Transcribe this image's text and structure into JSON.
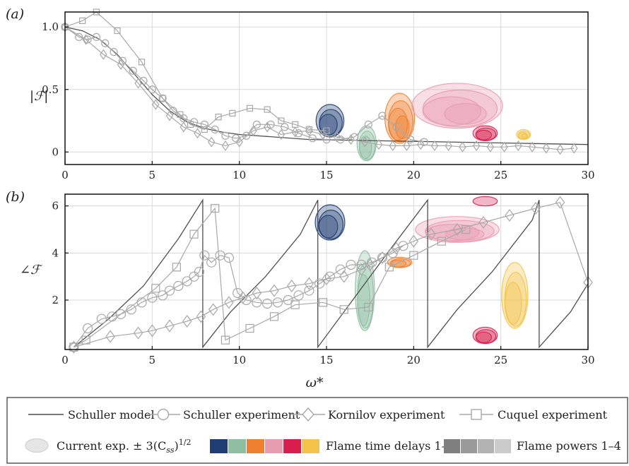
{
  "colors": {
    "delays": [
      "#1f3f73",
      "#8fbfa3",
      "#ee8030",
      "#e99bb0",
      "#d81e4d",
      "#f3c34a"
    ],
    "powers": [
      "#7f7f7f",
      "#9a9a9a",
      "#b3b3b3",
      "#cbcbcb"
    ],
    "marker": "#a8a8a8",
    "model": "#4f4f4f"
  },
  "chart_data": [
    {
      "panel": "(a)",
      "type": "line",
      "xlim": [
        0,
        30
      ],
      "ylim": [
        -0.1,
        1.12
      ],
      "grid": true,
      "ylabel": "|ℱ|",
      "xticks": [
        0,
        5,
        10,
        15,
        20,
        25,
        30
      ],
      "yticks": [
        0,
        0.5,
        1.0
      ],
      "ytick_labels": [
        "0",
        "0.5",
        "1.0"
      ],
      "series": [
        {
          "name": "Schuller model",
          "style": "line",
          "x": [
            0,
            1,
            2,
            3,
            4,
            5,
            6,
            7,
            8,
            9,
            10,
            12,
            14,
            16,
            18,
            20,
            22,
            24,
            26,
            28,
            30
          ],
          "y": [
            1.0,
            0.97,
            0.9,
            0.78,
            0.62,
            0.46,
            0.33,
            0.24,
            0.19,
            0.16,
            0.14,
            0.12,
            0.1,
            0.095,
            0.09,
            0.085,
            0.08,
            0.075,
            0.07,
            0.065,
            0.06
          ]
        },
        {
          "name": "Schuller experiment",
          "style": "circle",
          "x": [
            0,
            0.8,
            1.3,
            1.8,
            2.3,
            2.8,
            3.3,
            3.9,
            4.5,
            5.0,
            5.6,
            6.2,
            6.8,
            7.4,
            8.0,
            8.6,
            9.2,
            9.8,
            10.4,
            11.0,
            11.8,
            12.6,
            13.4,
            14.2,
            15.0,
            15.8,
            16.6,
            17.4,
            18.2,
            19.0,
            19.8,
            20.6
          ],
          "y": [
            1.0,
            0.92,
            0.9,
            0.92,
            0.87,
            0.8,
            0.73,
            0.65,
            0.57,
            0.5,
            0.43,
            0.33,
            0.27,
            0.24,
            0.22,
            0.18,
            0.13,
            0.11,
            0.13,
            0.22,
            0.22,
            0.2,
            0.15,
            0.11,
            0.1,
            0.1,
            0.12,
            0.22,
            0.29,
            0.2,
            0.1,
            0.08
          ]
        },
        {
          "name": "Kornilov experiment",
          "style": "diamond",
          "x": [
            0,
            1.2,
            2.2,
            3.2,
            4.2,
            5.2,
            6.0,
            6.8,
            7.6,
            8.4,
            9.2,
            10.0,
            10.8,
            11.6,
            12.4,
            13.2,
            14.0,
            14.8,
            15.6,
            16.4,
            17.2,
            18.0,
            18.8,
            19.6,
            20.4,
            21.2,
            22.0,
            22.8,
            23.6,
            24.4,
            25.2,
            26.0,
            26.8,
            27.6,
            28.4,
            29.2
          ],
          "y": [
            1.0,
            0.9,
            0.78,
            0.7,
            0.55,
            0.38,
            0.29,
            0.2,
            0.15,
            0.08,
            0.05,
            0.08,
            0.17,
            0.2,
            0.14,
            0.16,
            0.17,
            0.14,
            0.12,
            0.1,
            0.08,
            0.06,
            0.05,
            0.05,
            0.06,
            0.05,
            0.05,
            0.04,
            0.05,
            0.04,
            0.04,
            0.05,
            0.04,
            0.03,
            0.02,
            0.03
          ]
        },
        {
          "name": "Cuquel experiment",
          "style": "square",
          "x": [
            0,
            1.0,
            1.8,
            3.0,
            4.4,
            5.6,
            6.6,
            7.2,
            8.0,
            8.8,
            9.6,
            10.6,
            11.6,
            12.4,
            13.2,
            14.0,
            15.0
          ],
          "y": [
            1.0,
            1.05,
            1.12,
            0.97,
            0.72,
            0.43,
            0.3,
            0.22,
            0.18,
            0.28,
            0.31,
            0.35,
            0.34,
            0.25,
            0.22,
            0.18,
            0.17
          ]
        }
      ],
      "ellipses": [
        {
          "delay": 1,
          "cx": 15.2,
          "cy": 0.25,
          "rx": 0.8,
          "ry": 0.13,
          "layers": 3
        },
        {
          "delay": 2,
          "cx": 17.3,
          "cy": 0.07,
          "rx": 0.55,
          "ry": 0.14,
          "layers": 3
        },
        {
          "delay": 3,
          "cx": 19.2,
          "cy": 0.27,
          "rx": 0.85,
          "ry": 0.2,
          "layers": 4
        },
        {
          "delay": 4,
          "cx": 22.5,
          "cy": 0.37,
          "rx": 2.6,
          "ry": 0.18,
          "layers": 4
        },
        {
          "delay": 5,
          "cx": 24.1,
          "cy": 0.15,
          "rx": 0.7,
          "ry": 0.06,
          "layers": 3
        },
        {
          "delay": 6,
          "cx": 26.3,
          "cy": 0.14,
          "rx": 0.4,
          "ry": 0.04,
          "layers": 4
        }
      ]
    },
    {
      "panel": "(b)",
      "type": "line",
      "xlim": [
        0,
        30
      ],
      "ylim": [
        -0.1,
        6.5
      ],
      "grid": true,
      "xlabel": "ω*",
      "ylabel": "∠ℱ",
      "xticks": [
        0,
        5,
        10,
        15,
        20,
        25,
        30
      ],
      "yticks": [
        2,
        4,
        6
      ],
      "series": [
        {
          "name": "Schuller model",
          "style": "line",
          "x": [
            0.5,
            2.5,
            4.5,
            6.5,
            7.9,
            7.9,
            9.5,
            11.5,
            13.5,
            14.5,
            14.5,
            16.5,
            18.5,
            20.8,
            20.8,
            22.5,
            24.5,
            26.8,
            27.2,
            27.2,
            29.0,
            30.0
          ],
          "y": [
            0.0,
            1.2,
            2.6,
            4.6,
            6.25,
            0.0,
            1.5,
            3.0,
            4.8,
            6.25,
            0.0,
            2.0,
            4.0,
            6.25,
            0.0,
            1.6,
            3.2,
            5.4,
            6.25,
            0.0,
            1.5,
            2.7
          ]
        },
        {
          "name": "Schuller experiment",
          "style": "circle",
          "x": [
            0.5,
            1.3,
            2.1,
            2.7,
            3.2,
            3.8,
            4.4,
            5.0,
            5.6,
            6.0,
            6.5,
            7.0,
            7.4,
            7.7,
            8.0,
            8.4,
            8.9,
            9.4,
            9.9,
            10.4,
            11.0,
            11.6,
            12.2,
            12.8,
            13.4,
            14.0,
            14.6,
            15.2,
            15.8,
            16.4,
            17.0,
            17.6,
            18.2,
            18.8,
            19.4
          ],
          "y": [
            0.0,
            0.8,
            1.2,
            1.3,
            1.4,
            1.6,
            1.9,
            2.1,
            2.2,
            2.4,
            2.6,
            2.8,
            3.0,
            3.2,
            3.9,
            3.6,
            3.9,
            3.8,
            2.3,
            2.0,
            1.9,
            1.85,
            1.9,
            2.0,
            2.2,
            2.4,
            2.7,
            3.0,
            3.3,
            3.5,
            3.5,
            3.6,
            3.8,
            4.0,
            4.3
          ]
        },
        {
          "name": "Kornilov experiment",
          "style": "diamond",
          "x": [
            0.5,
            2.6,
            4.2,
            5.0,
            6.0,
            7.0,
            7.8,
            8.5,
            9.4,
            10.2,
            11.0,
            12.0,
            13.0,
            14.0,
            15.0,
            16.0,
            17.0,
            17.5,
            18.2,
            19.0,
            20.0,
            21.0,
            22.5,
            24.0,
            25.5,
            27.0,
            28.4,
            30.0
          ],
          "y": [
            0.0,
            0.45,
            0.6,
            0.7,
            0.9,
            1.1,
            1.3,
            1.6,
            1.9,
            2.1,
            2.3,
            2.4,
            2.6,
            2.7,
            2.9,
            3.0,
            3.3,
            3.5,
            3.8,
            4.2,
            4.5,
            4.8,
            5.0,
            5.3,
            5.6,
            5.9,
            6.15,
            2.75
          ]
        },
        {
          "name": "Cuquel experiment",
          "style": "square",
          "x": [
            0.5,
            1.2,
            5.2,
            6.4,
            7.4,
            8.6,
            9.2,
            10.6,
            12.0,
            13.2,
            14.8,
            16.0,
            17.4,
            18.6,
            20.0,
            21.6,
            23.0
          ],
          "y": [
            0.0,
            0.3,
            2.5,
            3.4,
            4.8,
            5.9,
            0.3,
            0.8,
            1.3,
            1.8,
            1.9,
            1.6,
            1.7,
            3.4,
            3.9,
            4.5,
            5.0
          ]
        }
      ],
      "ellipses": [
        {
          "delay": 1,
          "cx": 15.2,
          "cy": 5.3,
          "rx": 0.85,
          "ry": 0.75,
          "layers": 3
        },
        {
          "delay": 2,
          "cx": 17.2,
          "cy": 2.4,
          "rx": 0.55,
          "ry": 1.7,
          "layers": 3
        },
        {
          "delay": 3,
          "cx": 19.2,
          "cy": 3.6,
          "rx": 0.7,
          "ry": 0.22,
          "layers": 3
        },
        {
          "delay": 4,
          "cx": 22.5,
          "cy": 5.0,
          "rx": 2.4,
          "ry": 0.55,
          "layers": 4
        },
        {
          "delay": 5,
          "cx": 24.1,
          "cy": 6.2,
          "rx": 0.7,
          "ry": 0.2,
          "layers": 1
        },
        {
          "delay": 5,
          "cx": 24.1,
          "cy": 0.5,
          "rx": 0.7,
          "ry": 0.35,
          "layers": 3
        },
        {
          "delay": 6,
          "cx": 25.8,
          "cy": 2.2,
          "rx": 0.75,
          "ry": 1.4,
          "layers": 3
        }
      ]
    }
  ],
  "legend": {
    "row1": [
      "Schuller model",
      "Schuller experiment",
      "Kornilov experiment",
      "Cuquel experiment"
    ],
    "row2": {
      "ellipse_label": "Current exp. ± 3(C",
      "ellipse_sub": "ss",
      "ellipse_sup": "1/2",
      "delays_label": "Flame time delays 1–6",
      "powers_label": "Flame powers 1–4"
    }
  }
}
